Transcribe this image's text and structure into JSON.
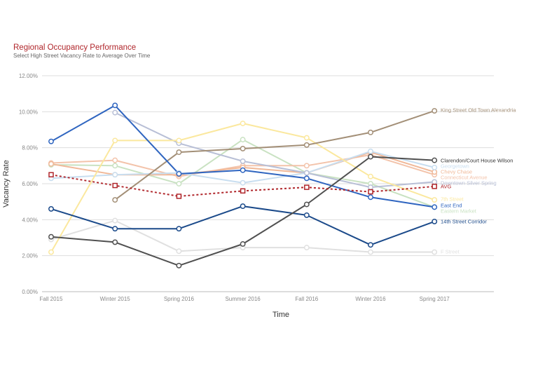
{
  "chart_data": {
    "type": "line",
    "title": "Regional Occupancy Performance",
    "subtitle": "Select High Street Vacancy Rate to Average Over Time",
    "xlabel": "Time",
    "ylabel": "Vacancy Rate",
    "categories": [
      "Fall 2015",
      "Winter 2015",
      "Spring 2016",
      "Summer 2016",
      "Fall 2016",
      "Winter 2016",
      "Spring 2017"
    ],
    "yticks": [
      "0.00%",
      "2.00%",
      "4.00%",
      "6.00%",
      "8.00%",
      "10.00%",
      "12.00%"
    ],
    "ylim": [
      0,
      12
    ],
    "grid": true,
    "series": [
      {
        "name": "F Street",
        "color": "#e0e0e0",
        "width": 2,
        "values": [
          2.9,
          3.95,
          2.25,
          2.45,
          2.45,
          2.2,
          2.2
        ]
      },
      {
        "name": "Eastern Market",
        "color": "#c9e2c2",
        "width": 2,
        "values": [
          7.05,
          7.0,
          6.0,
          8.45,
          6.6,
          6.0,
          4.7
        ]
      },
      {
        "name": "Connecticut Avenue",
        "color": "#f3c3aa",
        "width": 2,
        "values": [
          7.15,
          7.3,
          6.4,
          7.0,
          7.0,
          7.6,
          6.5
        ]
      },
      {
        "name": "Chevy Chase",
        "color": "#f0b898",
        "width": 2,
        "values": [
          7.1,
          6.5,
          6.5,
          6.9,
          6.6,
          7.75,
          6.65
        ]
      },
      {
        "name": "Georgetown",
        "color": "#c8def0",
        "width": 2,
        "values": [
          6.3,
          6.5,
          6.6,
          6.05,
          6.6,
          7.8,
          6.9
        ]
      },
      {
        "name": "Downtown Silver Spring",
        "color": "#b8bfd6",
        "width": 2,
        "values": [
          null,
          9.95,
          8.25,
          7.25,
          6.6,
          5.8,
          6.1
        ]
      },
      {
        "name": "7th Street",
        "color": "#fbe89e",
        "width": 2,
        "values": [
          2.2,
          8.4,
          8.4,
          9.35,
          8.55,
          6.4,
          5.1
        ]
      },
      {
        "name": "King Street Old Town Alexandria",
        "color": "#a38f77",
        "width": 2,
        "values": [
          null,
          5.1,
          7.75,
          7.95,
          8.15,
          8.85,
          10.05
        ]
      },
      {
        "name": "East End",
        "color": "#2f65c0",
        "width": 2,
        "values": [
          8.35,
          10.35,
          6.55,
          6.75,
          6.3,
          5.25,
          4.7
        ]
      },
      {
        "name": "14th Street Corridor",
        "color": "#1b4a8a",
        "width": 2,
        "values": [
          4.6,
          3.5,
          3.5,
          4.75,
          4.25,
          2.6,
          3.9
        ]
      },
      {
        "name": "Clarendon/Court House Wilson",
        "color": "#505050",
        "width": 2,
        "values": [
          3.05,
          2.75,
          1.45,
          2.65,
          4.85,
          7.5,
          7.3
        ]
      },
      {
        "name": "AVG",
        "color": "#b0262b",
        "width": 2,
        "dashed": true,
        "square": true,
        "values": [
          6.5,
          5.9,
          5.3,
          5.6,
          5.8,
          5.55,
          5.85
        ]
      }
    ],
    "legend": [
      {
        "name": "King Street Old Town Alexandria",
        "color": "#a38f77"
      },
      {
        "name": "Clarendon/Court House Wilson",
        "color": "#333333"
      },
      {
        "name": "Georgetown",
        "color": "#c8def0"
      },
      {
        "name": "Chevy Chase",
        "color": "#f0b898"
      },
      {
        "name": "Connecticut Avenue",
        "color": "#f3c3aa"
      },
      {
        "name": "Downtown Silver Spring",
        "color": "#b8bfd6"
      },
      {
        "name": "AVG",
        "color": "#b0262b"
      },
      {
        "name": "7th Street",
        "color": "#fbe89e"
      },
      {
        "name": "East End",
        "color": "#2f65c0"
      },
      {
        "name": "Eastern Market",
        "color": "#c9e2c2"
      },
      {
        "name": "14th Street Corridor",
        "color": "#1b4a8a"
      },
      {
        "name": "F Street",
        "color": "#e0e0e0"
      }
    ]
  }
}
